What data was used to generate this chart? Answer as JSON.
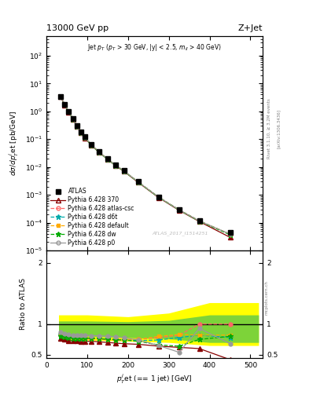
{
  "title_left": "13000 GeV pp",
  "title_right": "Z+Jet",
  "annotation": "Jet p$_T$ (p$_T$ > 30 GeV, |y| < 2.5, m$_{ll}$ > 40 GeV)",
  "xlabel": "p$^j_T$et (== 1 jet) [GeV]",
  "ylabel_main": "dσ/dp$^j_T$et [pb/GeV]",
  "ylabel_ratio": "Ratio to ATLAS",
  "watermark": "ATLAS_2017_I1514251",
  "pt_centers": [
    35,
    45,
    55,
    65,
    75,
    85,
    95,
    110,
    130,
    150,
    170,
    190,
    225,
    275,
    325,
    375,
    450
  ],
  "atlas_vals": [
    3.5,
    1.8,
    1.0,
    0.55,
    0.3,
    0.18,
    0.12,
    0.065,
    0.035,
    0.02,
    0.012,
    0.0075,
    0.003,
    0.00085,
    0.0003,
    0.00012,
    4.5e-05
  ],
  "atlas_err": [
    0.25,
    0.12,
    0.07,
    0.04,
    0.022,
    0.012,
    0.008,
    0.005,
    0.003,
    0.0015,
    0.0009,
    0.0005,
    0.0002,
    7e-05,
    2.5e-05,
    1e-05,
    6e-06
  ],
  "p370_vals": [
    3.3,
    1.7,
    0.95,
    0.52,
    0.285,
    0.17,
    0.11,
    0.06,
    0.033,
    0.019,
    0.011,
    0.007,
    0.0028,
    0.0008,
    0.00028,
    0.00011,
    3e-05
  ],
  "atlascsc_vals": [
    3.4,
    1.74,
    0.97,
    0.53,
    0.29,
    0.175,
    0.115,
    0.062,
    0.034,
    0.0195,
    0.0116,
    0.0072,
    0.0029,
    0.00083,
    0.00029,
    0.000115,
    3.8e-05
  ],
  "d6t_vals": [
    3.42,
    1.75,
    0.975,
    0.535,
    0.292,
    0.176,
    0.116,
    0.063,
    0.0345,
    0.0192,
    0.01155,
    0.00725,
    0.00292,
    0.000835,
    0.000292,
    0.000116,
    3.9e-05
  ],
  "default_vals": [
    3.42,
    1.75,
    0.975,
    0.535,
    0.292,
    0.176,
    0.116,
    0.063,
    0.0345,
    0.0192,
    0.01155,
    0.00725,
    0.00292,
    0.000835,
    0.000292,
    0.000116,
    3.9e-05
  ],
  "dw_vals": [
    3.38,
    1.72,
    0.96,
    0.525,
    0.288,
    0.173,
    0.113,
    0.061,
    0.0335,
    0.0188,
    0.01135,
    0.00715,
    0.00287,
    0.00082,
    0.000288,
    0.000113,
    3.7e-05
  ],
  "p0_vals": [
    3.45,
    1.76,
    0.975,
    0.535,
    0.292,
    0.176,
    0.116,
    0.063,
    0.0345,
    0.0192,
    0.01155,
    0.00725,
    0.00292,
    0.000835,
    0.000292,
    0.000116,
    3.9e-05
  ],
  "ratio_p370": [
    0.76,
    0.75,
    0.73,
    0.73,
    0.73,
    0.72,
    0.72,
    0.72,
    0.71,
    0.7,
    0.69,
    0.68,
    0.67,
    0.64,
    0.62,
    0.6,
    0.42
  ],
  "ratio_atlascsc": [
    0.82,
    0.8,
    0.79,
    0.78,
    0.78,
    0.77,
    0.76,
    0.76,
    0.76,
    0.75,
    0.74,
    0.74,
    0.75,
    0.78,
    0.82,
    1.0,
    1.0
  ],
  "ratio_d6t": [
    0.83,
    0.81,
    0.8,
    0.79,
    0.78,
    0.77,
    0.77,
    0.77,
    0.76,
    0.76,
    0.75,
    0.74,
    0.73,
    0.74,
    0.78,
    0.82,
    0.78
  ],
  "ratio_default": [
    0.83,
    0.81,
    0.8,
    0.78,
    0.78,
    0.78,
    0.77,
    0.76,
    0.76,
    0.75,
    0.75,
    0.75,
    0.75,
    0.8,
    0.83,
    0.82,
    0.82
  ],
  "ratio_dw": [
    0.81,
    0.79,
    0.78,
    0.77,
    0.77,
    0.77,
    0.77,
    0.77,
    0.76,
    0.75,
    0.745,
    0.74,
    0.72,
    0.66,
    0.64,
    0.75,
    0.8
  ],
  "ratio_p0": [
    0.87,
    0.84,
    0.83,
    0.82,
    0.82,
    0.82,
    0.82,
    0.81,
    0.81,
    0.8,
    0.79,
    0.78,
    0.74,
    0.65,
    0.54,
    0.93,
    0.68
  ],
  "band_x": [
    30,
    100,
    200,
    300,
    400,
    520
  ],
  "band_yellow_lo": [
    1.15,
    1.15,
    1.12,
    1.18,
    1.35,
    1.35
  ],
  "band_yellow_hi": [
    0.74,
    0.74,
    0.72,
    0.7,
    0.65,
    0.65
  ],
  "band_green_lo": [
    1.05,
    1.05,
    1.04,
    1.06,
    1.15,
    1.15
  ],
  "band_green_hi": [
    0.8,
    0.8,
    0.78,
    0.76,
    0.7,
    0.7
  ],
  "color_atlas": "#000000",
  "color_p370": "#880000",
  "color_atlascsc": "#ff6666",
  "color_d6t": "#00aaaa",
  "color_default": "#ffaa00",
  "color_dw": "#00aa00",
  "color_p0": "#999999",
  "ylim_main": [
    1e-05,
    500
  ],
  "ylim_ratio": [
    0.45,
    2.2
  ],
  "xlim": [
    0,
    530
  ]
}
